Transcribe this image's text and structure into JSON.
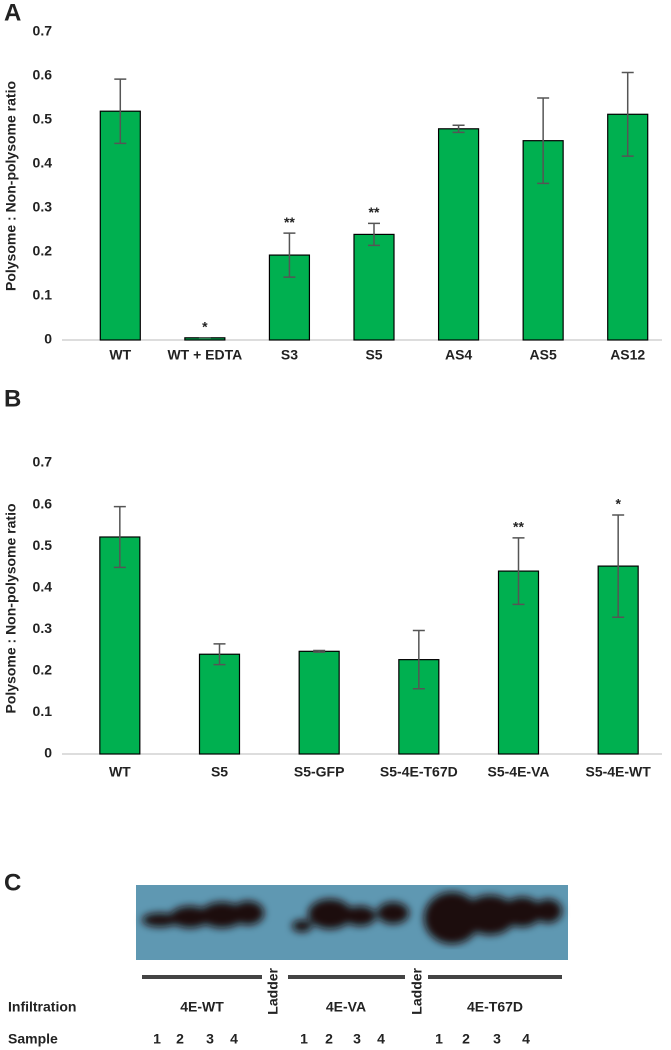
{
  "chart_data": [
    {
      "type": "bar",
      "panel_label": "A",
      "ylabel": "Polysome : Non-polysome ratio",
      "categories": [
        "WT",
        "WT + EDTA",
        "S3",
        "S5",
        "AS4",
        "AS5",
        "AS12"
      ],
      "values": [
        0.52,
        0.005,
        0.193,
        0.24,
        0.48,
        0.453,
        0.513
      ],
      "errors": [
        0.073,
        0,
        0.05,
        0.025,
        0.008,
        0.097,
        0.095
      ],
      "value_annotations": [
        null,
        "*",
        "**",
        "**",
        null,
        null,
        null
      ],
      "color": "#00b050",
      "ylim": [
        0,
        0.7
      ],
      "yticks": [
        0,
        0.1,
        0.2,
        0.3,
        0.4,
        0.5,
        0.6,
        0.7
      ]
    },
    {
      "type": "bar",
      "panel_label": "B",
      "ylabel": "Polysome : Non-polysome ratio",
      "categories": [
        "WT",
        "S5",
        "S5-GFP",
        "S5-4E-T67D",
        "S5-4E-VA",
        "S5-4E-WT"
      ],
      "values": [
        0.522,
        0.24,
        0.247,
        0.227,
        0.44,
        0.452
      ],
      "errors": [
        0.073,
        0.025,
        0.002,
        0.07,
        0.08,
        0.123
      ],
      "value_annotations": [
        null,
        null,
        null,
        null,
        "**",
        "*"
      ],
      "color": "#00b050",
      "ylim": [
        0,
        0.7
      ],
      "yticks": [
        0,
        0.1,
        0.2,
        0.3,
        0.4,
        0.5,
        0.6,
        0.7
      ]
    }
  ],
  "blot": {
    "panel_label": "C",
    "row_labels": [
      "Infiltration",
      "Sample"
    ],
    "groups": [
      {
        "name": "4E-WT",
        "samples": [
          "1",
          "2",
          "3",
          "4"
        ]
      },
      {
        "name": "4E-VA",
        "samples": [
          "1",
          "2",
          "3",
          "4"
        ]
      },
      {
        "name": "4E-T67D",
        "samples": [
          "1",
          "2",
          "3",
          "4"
        ]
      }
    ],
    "ladders": [
      "Ladder",
      "Ladder"
    ]
  }
}
